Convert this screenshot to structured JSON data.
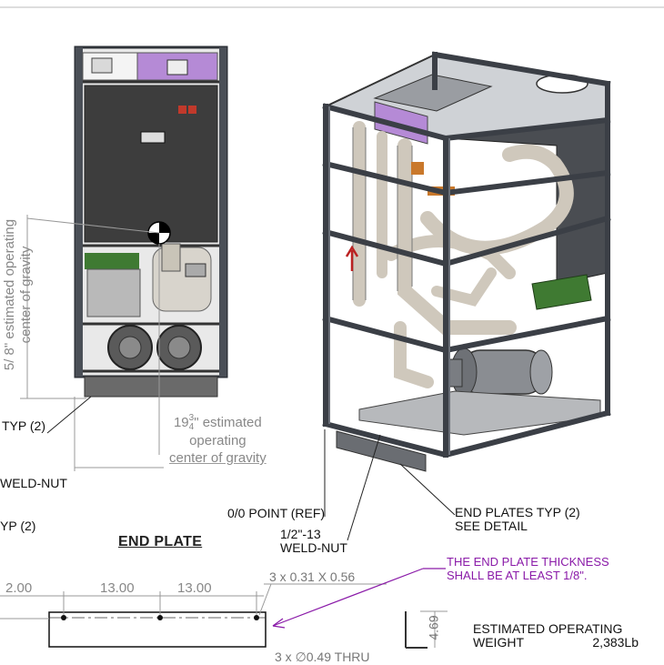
{
  "views": {
    "front": {
      "cog_vertical_label_line1": "5/ 8\" estimated operating",
      "cog_vertical_label_line2": "center of gravity",
      "cog_horizontal_value": "19",
      "cog_horizontal_frac_num": "3",
      "cog_horizontal_frac_den": "4",
      "cog_horizontal_line1": "\" estimated",
      "cog_horizontal_line2": "operating",
      "cog_horizontal_line3": "center of gravity",
      "typ_label": "TYP (2)",
      "weld_nut_label": "WELD-NUT"
    },
    "iso": {
      "origin_label": "0/0 POINT (REF)",
      "weld_nut_line1": "1/2\"-13",
      "weld_nut_line2": "WELD-NUT",
      "end_plates_line1": "END PLATES TYP (2)",
      "end_plates_line2": "SEE DETAIL"
    },
    "end_plate": {
      "title": "END PLATE",
      "left_typ_label": "YP (2)",
      "dim_left": "2.00",
      "dim_mid1": "13.00",
      "dim_mid2": "13.00",
      "slot_callout": "3 x 0.31 X 0.56",
      "hole_callout": "3 x ∅0.49 THRU",
      "thickness_dim": "4.69"
    }
  },
  "notes": {
    "thickness_line1": "THE END PLATE THICKNESS",
    "thickness_line2": "SHALL BE AT LEAST 1/8\"."
  },
  "weight": {
    "label_line1": "ESTIMATED OPERATING",
    "label_line2": "WEIGHT",
    "value": "2,383Lb"
  },
  "colors": {
    "frame": "#3b3f46",
    "panel": "#3a3a3a",
    "purple_plate": "#b58ad6",
    "pipe": "#cfc8bc",
    "green_box": "#3f7a32",
    "note_purple": "#8a1aa8",
    "dim_gray": "#888888"
  }
}
